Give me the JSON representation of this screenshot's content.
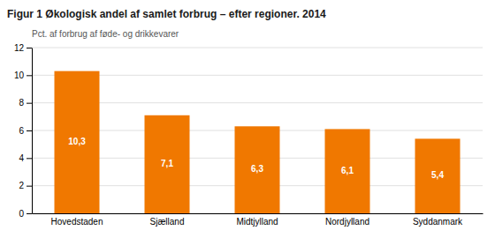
{
  "chart_data": {
    "type": "bar",
    "title": "Figur 1 Økologisk andel af samlet forbrug – efter regioner. 2014",
    "subtitle": "Pct. af forbrug af føde- og drikkevarer",
    "categories": [
      "Hovedstaden",
      "Sjælland",
      "Midtjylland",
      "Nordjylland",
      "Syddanmark"
    ],
    "values": [
      10.3,
      7.1,
      6.3,
      6.1,
      5.4
    ],
    "value_labels": [
      "10,3",
      "7,1",
      "6,3",
      "6,1",
      "5,4"
    ],
    "data_labels": true,
    "color": "#F07800",
    "ylim": [
      0,
      12
    ],
    "yticks": [
      0,
      2,
      4,
      6,
      8,
      10,
      12
    ],
    "grid": true
  }
}
